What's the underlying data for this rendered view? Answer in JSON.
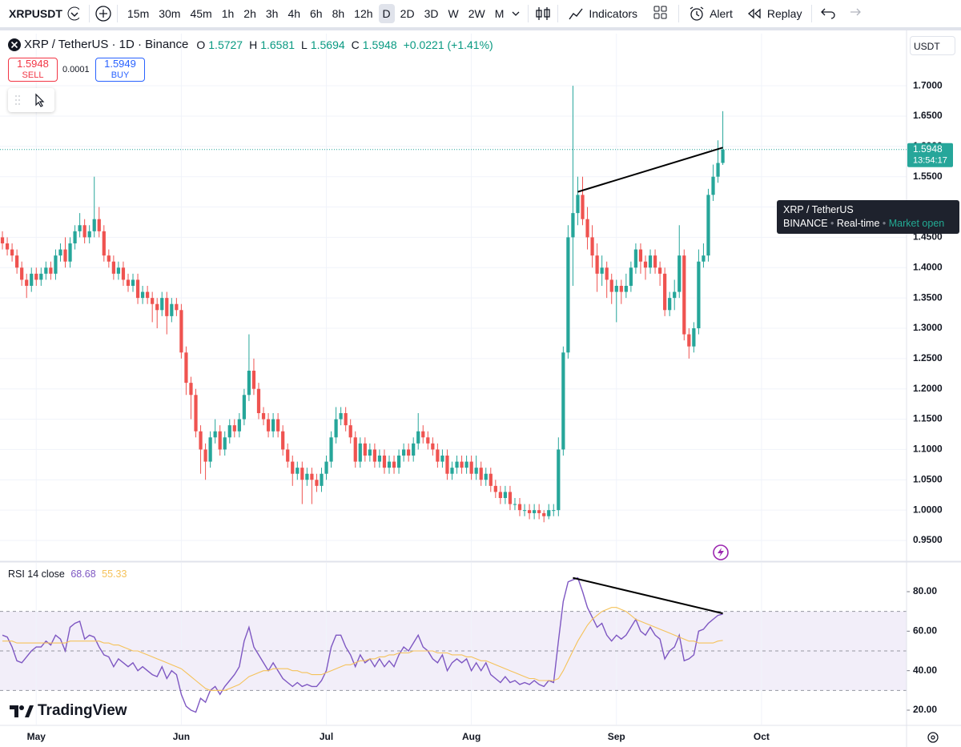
{
  "toolbar": {
    "symbol": "XRPUSDT",
    "intervals": [
      "15m",
      "30m",
      "45m",
      "1h",
      "2h",
      "3h",
      "4h",
      "6h",
      "8h",
      "12h",
      "D",
      "2D",
      "3D",
      "W",
      "2W",
      "M"
    ],
    "active_interval": "D",
    "indicators": "Indicators",
    "alert": "Alert",
    "replay": "Replay"
  },
  "legend": {
    "title": "XRP / TetherUS · 1D · Binance",
    "o": "O",
    "h": "H",
    "l": "L",
    "c": "C",
    "change": "+0.0221 (+1.41%)"
  },
  "trade": {
    "sell": "SELL",
    "spread": "0.0001",
    "buy_price": "1.5949",
    "buy": "BUY"
  },
  "currency": "USDT",
  "countdown": "13:54:17",
  "tooltip": {
    "title": "XRP / TetherUS",
    "exchange": "BINANCE",
    "mode": "Real-time",
    "status": "Market open"
  },
  "logo": "TradingView",
  "chart_data": [
    {
      "type": "candlestick",
      "up_color": "#26a69a",
      "down_color": "#ef5350",
      "grid": true,
      "open": [
        1.45,
        1.44,
        1.43,
        1.42,
        1.4,
        1.38,
        1.37,
        1.39,
        1.38,
        1.39,
        1.4,
        1.39,
        1.42,
        1.43,
        1.41,
        1.44,
        1.46,
        1.47,
        1.45,
        1.46,
        1.48,
        1.46,
        1.42,
        1.41,
        1.39,
        1.4,
        1.38,
        1.37,
        1.38,
        1.35,
        1.36,
        1.35,
        1.34,
        1.33,
        1.35,
        1.32,
        1.34,
        1.33,
        1.26,
        1.21,
        1.19,
        1.13,
        1.1,
        1.08,
        1.12,
        1.13,
        1.1,
        1.12,
        1.14,
        1.13,
        1.15,
        1.19,
        1.23,
        1.2,
        1.16,
        1.15,
        1.13,
        1.15,
        1.13,
        1.1,
        1.08,
        1.06,
        1.07,
        1.05,
        1.06,
        1.05,
        1.04,
        1.06,
        1.08,
        1.12,
        1.15,
        1.16,
        1.14,
        1.12,
        1.08,
        1.11,
        1.09,
        1.1,
        1.08,
        1.09,
        1.07,
        1.08,
        1.07,
        1.09,
        1.1,
        1.09,
        1.11,
        1.13,
        1.12,
        1.11,
        1.1,
        1.08,
        1.09,
        1.06,
        1.07,
        1.08,
        1.07,
        1.08,
        1.06,
        1.07,
        1.05,
        1.06,
        1.04,
        1.03,
        1.02,
        1.03,
        1.01,
        1.01,
        1.0,
        1.0,
        0.995,
        1.0,
        0.995,
        0.99,
        1.0,
        1.0,
        1.1,
        1.26,
        1.45,
        1.49,
        1.52,
        1.48,
        1.45,
        1.42,
        1.39,
        1.4,
        1.38,
        1.36,
        1.37,
        1.36,
        1.37,
        1.4,
        1.43,
        1.41,
        1.4,
        1.42,
        1.4,
        1.39,
        1.33,
        1.35,
        1.36,
        1.42,
        1.29,
        1.27,
        1.3,
        1.41,
        1.42,
        1.52,
        1.55,
        1.5727
      ],
      "high": [
        1.46,
        1.45,
        1.44,
        1.43,
        1.41,
        1.39,
        1.4,
        1.4,
        1.4,
        1.41,
        1.41,
        1.43,
        1.44,
        1.45,
        1.45,
        1.47,
        1.49,
        1.48,
        1.47,
        1.55,
        1.5,
        1.47,
        1.43,
        1.42,
        1.41,
        1.41,
        1.39,
        1.39,
        1.39,
        1.37,
        1.37,
        1.36,
        1.35,
        1.36,
        1.36,
        1.35,
        1.35,
        1.34,
        1.27,
        1.22,
        1.2,
        1.14,
        1.11,
        1.13,
        1.15,
        1.14,
        1.13,
        1.15,
        1.15,
        1.16,
        1.2,
        1.29,
        1.25,
        1.21,
        1.17,
        1.16,
        1.16,
        1.16,
        1.14,
        1.11,
        1.09,
        1.08,
        1.08,
        1.07,
        1.07,
        1.06,
        1.07,
        1.09,
        1.13,
        1.17,
        1.17,
        1.17,
        1.15,
        1.13,
        1.12,
        1.12,
        1.11,
        1.11,
        1.1,
        1.1,
        1.09,
        1.09,
        1.1,
        1.11,
        1.11,
        1.12,
        1.16,
        1.14,
        1.13,
        1.12,
        1.11,
        1.1,
        1.1,
        1.08,
        1.09,
        1.09,
        1.09,
        1.09,
        1.09,
        1.08,
        1.07,
        1.07,
        1.05,
        1.04,
        1.04,
        1.04,
        1.02,
        1.02,
        1.01,
        1.01,
        1.01,
        1.01,
        1.0,
        1.01,
        1.01,
        1.12,
        1.27,
        1.47,
        1.7,
        1.55,
        1.55,
        1.5,
        1.47,
        1.44,
        1.42,
        1.41,
        1.39,
        1.38,
        1.38,
        1.39,
        1.41,
        1.44,
        1.44,
        1.42,
        1.43,
        1.43,
        1.41,
        1.4,
        1.36,
        1.38,
        1.47,
        1.43,
        1.3,
        1.31,
        1.43,
        1.44,
        1.53,
        1.57,
        1.61,
        1.6581
      ],
      "low": [
        1.43,
        1.42,
        1.41,
        1.39,
        1.37,
        1.35,
        1.36,
        1.37,
        1.37,
        1.38,
        1.38,
        1.38,
        1.41,
        1.4,
        1.4,
        1.43,
        1.45,
        1.44,
        1.44,
        1.45,
        1.45,
        1.41,
        1.4,
        1.38,
        1.38,
        1.37,
        1.36,
        1.36,
        1.34,
        1.34,
        1.34,
        1.31,
        1.3,
        1.32,
        1.29,
        1.31,
        1.32,
        1.25,
        1.19,
        1.15,
        1.12,
        1.06,
        1.05,
        1.07,
        1.11,
        1.09,
        1.09,
        1.11,
        1.12,
        1.12,
        1.14,
        1.18,
        1.19,
        1.15,
        1.14,
        1.12,
        1.12,
        1.12,
        1.09,
        1.07,
        1.04,
        1.05,
        1.01,
        1.04,
        1.01,
        1.03,
        1.03,
        1.05,
        1.07,
        1.11,
        1.14,
        1.13,
        1.11,
        1.07,
        1.07,
        1.08,
        1.08,
        1.07,
        1.07,
        1.06,
        1.06,
        1.06,
        1.06,
        1.08,
        1.08,
        1.08,
        1.1,
        1.11,
        1.1,
        1.09,
        1.07,
        1.07,
        1.05,
        1.05,
        1.06,
        1.06,
        1.06,
        1.05,
        1.05,
        1.04,
        1.04,
        1.03,
        1.02,
        1.01,
        1.01,
        1.0,
        1.0,
        0.99,
        0.99,
        0.985,
        0.985,
        0.985,
        0.98,
        0.985,
        0.99,
        0.99,
        1.09,
        1.25,
        1.37,
        1.47,
        1.47,
        1.43,
        1.4,
        1.36,
        1.37,
        1.35,
        1.34,
        1.31,
        1.34,
        1.35,
        1.36,
        1.39,
        1.39,
        1.38,
        1.39,
        1.39,
        1.37,
        1.32,
        1.32,
        1.33,
        1.35,
        1.28,
        1.25,
        1.26,
        1.29,
        1.4,
        1.41,
        1.51,
        1.54,
        1.5694
      ],
      "close": [
        1.44,
        1.43,
        1.42,
        1.4,
        1.38,
        1.37,
        1.39,
        1.38,
        1.39,
        1.4,
        1.39,
        1.42,
        1.43,
        1.41,
        1.44,
        1.46,
        1.47,
        1.45,
        1.46,
        1.48,
        1.46,
        1.42,
        1.41,
        1.39,
        1.4,
        1.38,
        1.37,
        1.38,
        1.35,
        1.36,
        1.35,
        1.34,
        1.33,
        1.35,
        1.32,
        1.34,
        1.33,
        1.26,
        1.21,
        1.19,
        1.13,
        1.1,
        1.08,
        1.12,
        1.13,
        1.1,
        1.12,
        1.14,
        1.13,
        1.15,
        1.19,
        1.23,
        1.2,
        1.16,
        1.15,
        1.13,
        1.15,
        1.13,
        1.1,
        1.08,
        1.06,
        1.07,
        1.05,
        1.06,
        1.05,
        1.04,
        1.06,
        1.08,
        1.12,
        1.15,
        1.16,
        1.14,
        1.12,
        1.08,
        1.11,
        1.09,
        1.1,
        1.08,
        1.09,
        1.07,
        1.08,
        1.07,
        1.09,
        1.1,
        1.09,
        1.11,
        1.13,
        1.12,
        1.11,
        1.1,
        1.08,
        1.09,
        1.06,
        1.07,
        1.08,
        1.07,
        1.08,
        1.06,
        1.07,
        1.05,
        1.06,
        1.04,
        1.03,
        1.02,
        1.03,
        1.01,
        1.01,
        1.0,
        1.0,
        0.995,
        1.0,
        0.995,
        0.99,
        1.0,
        1.0,
        1.1,
        1.26,
        1.45,
        1.49,
        1.52,
        1.48,
        1.45,
        1.42,
        1.39,
        1.4,
        1.38,
        1.36,
        1.37,
        1.36,
        1.37,
        1.4,
        1.43,
        1.41,
        1.4,
        1.42,
        1.4,
        1.39,
        1.33,
        1.35,
        1.36,
        1.42,
        1.29,
        1.27,
        1.3,
        1.41,
        1.42,
        1.52,
        1.55,
        1.5727,
        1.5948
      ],
      "xlim": [
        -0.5,
        187
      ],
      "xticks": [
        {
          "value": 7,
          "label": "May"
        },
        {
          "value": 37,
          "label": "Jun"
        },
        {
          "value": 67,
          "label": "Jul"
        },
        {
          "value": 97,
          "label": "Aug"
        },
        {
          "value": 127,
          "label": "Sep"
        },
        {
          "value": 157,
          "label": "Oct"
        }
      ],
      "ylim": [
        0.917,
        1.786
      ],
      "yticks": [
        {
          "value": 0.95,
          "label": "0.9500"
        },
        {
          "value": 1.0,
          "label": "1.0000"
        },
        {
          "value": 1.05,
          "label": "1.0500"
        },
        {
          "value": 1.1,
          "label": "1.1000"
        },
        {
          "value": 1.15,
          "label": "1.1500"
        },
        {
          "value": 1.2,
          "label": "1.2000"
        },
        {
          "value": 1.25,
          "label": "1.2500"
        },
        {
          "value": 1.3,
          "label": "1.3000"
        },
        {
          "value": 1.35,
          "label": "1.3500"
        },
        {
          "value": 1.4,
          "label": "1.4000"
        },
        {
          "value": 1.45,
          "label": "1.4500"
        },
        {
          "value": 1.5,
          "label": "1.5000"
        },
        {
          "value": 1.55,
          "label": "1.5500"
        },
        {
          "value": 1.6,
          "label": "1.6000"
        },
        {
          "value": 1.65,
          "label": "1.6500"
        },
        {
          "value": 1.7,
          "label": "1.7000"
        }
      ],
      "trendline": {
        "x": [
          119,
          149
        ],
        "y": [
          1.525,
          1.598
        ],
        "color": "#000000"
      }
    },
    {
      "type": "line",
      "title": "RSI 14 close",
      "band_color": "#7e57c2",
      "bands": [
        30,
        50,
        70
      ],
      "series": [
        {
          "color": "#7e57c2",
          "values": [
            58,
            57,
            52,
            45,
            44,
            47,
            50,
            52,
            52,
            55,
            53,
            58,
            56,
            50,
            62,
            64,
            65,
            56,
            58,
            57,
            52,
            48,
            47,
            42,
            46,
            44,
            42,
            44,
            40,
            42,
            40,
            38,
            37,
            42,
            36,
            40,
            38,
            28,
            22,
            20,
            19,
            26,
            24,
            30,
            32,
            28,
            32,
            35,
            38,
            42,
            55,
            62,
            52,
            48,
            44,
            40,
            44,
            40,
            36,
            34,
            32,
            34,
            32,
            33,
            32,
            32,
            35,
            40,
            52,
            58,
            58,
            52,
            48,
            42,
            48,
            44,
            46,
            42,
            46,
            42,
            45,
            42,
            48,
            52,
            50,
            54,
            58,
            52,
            50,
            46,
            44,
            48,
            40,
            44,
            46,
            44,
            46,
            40,
            44,
            40,
            44,
            38,
            36,
            34,
            37,
            34,
            35,
            33,
            34,
            33,
            35,
            33,
            32,
            35,
            34,
            55,
            75,
            85,
            86,
            87,
            80,
            72,
            67,
            62,
            64,
            58,
            55,
            58,
            56,
            58,
            62,
            66,
            60,
            58,
            62,
            58,
            56,
            46,
            50,
            52,
            58,
            45,
            46,
            48,
            60,
            61,
            64,
            66,
            68,
            68.68
          ]
        },
        {
          "color": "#f5c25a",
          "values": [
            55,
            55,
            55,
            54,
            54,
            54,
            54,
            54,
            54,
            54,
            54,
            54,
            54,
            54,
            55,
            55,
            55,
            55,
            55,
            55,
            55,
            54,
            54,
            53,
            53,
            52,
            51,
            50,
            50,
            49,
            48,
            47,
            46,
            45,
            44,
            43,
            42,
            41,
            39,
            37,
            35,
            33,
            31,
            30,
            30,
            30,
            30,
            31,
            32,
            33,
            35,
            37,
            38,
            39,
            40,
            40,
            41,
            41,
            41,
            41,
            40,
            40,
            39,
            39,
            38,
            38,
            38,
            39,
            40,
            41,
            42,
            43,
            43,
            44,
            45,
            45,
            46,
            46,
            47,
            47,
            48,
            48,
            49,
            49,
            49,
            50,
            50,
            50,
            50,
            50,
            49,
            49,
            49,
            48,
            48,
            48,
            47,
            47,
            46,
            45,
            45,
            44,
            43,
            42,
            41,
            40,
            39,
            38,
            37,
            36,
            36,
            35,
            35,
            35,
            35,
            36,
            40,
            45,
            50,
            55,
            59,
            63,
            66,
            68,
            70,
            71,
            72,
            72,
            71,
            70,
            68,
            66,
            65,
            64,
            63,
            62,
            61,
            60,
            59,
            58,
            57,
            56,
            55,
            55,
            54,
            54,
            54,
            54,
            55,
            55.33
          ]
        }
      ],
      "ylim": [
        12.7,
        94.6
      ],
      "yticks": [
        {
          "value": 20,
          "label": "20.00"
        },
        {
          "value": 40,
          "label": "40.00"
        },
        {
          "value": 60,
          "label": "60.00"
        },
        {
          "value": 80,
          "label": "80.00"
        }
      ],
      "trendline": {
        "x": [
          118,
          149
        ],
        "y": [
          87,
          69
        ],
        "color": "#000000"
      }
    }
  ]
}
